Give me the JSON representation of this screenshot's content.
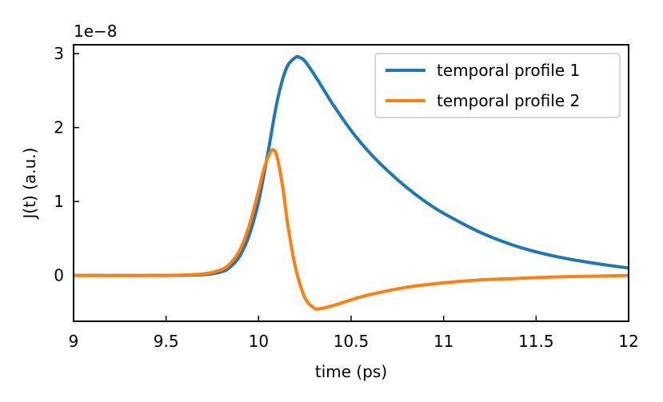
{
  "chart_data": {
    "type": "line",
    "title": "",
    "xlabel": "time (ps)",
    "ylabel": "J(t) (a.u.)",
    "y_offset_label": "1e−8",
    "xlim": [
      9,
      12
    ],
    "ylim": [
      -0.62,
      3.12
    ],
    "x_ticks": [
      9,
      9.5,
      10,
      10.5,
      11,
      11.5,
      12
    ],
    "x_tick_labels": [
      "9",
      "9.5",
      "10",
      "10.5",
      "11",
      "11.5",
      "12"
    ],
    "y_ticks": [
      0,
      1,
      2,
      3
    ],
    "y_tick_labels": [
      "0",
      "1",
      "2",
      "3"
    ],
    "grid": false,
    "legend_position": "top-right",
    "series": [
      {
        "name": "temporal profile 1",
        "color": "#1f77b4",
        "x": [
          9.0,
          9.5,
          9.7,
          9.8,
          9.85,
          9.9,
          9.95,
          10.0,
          10.05,
          10.1,
          10.15,
          10.2,
          10.22,
          10.25,
          10.3,
          10.35,
          10.4,
          10.5,
          10.6,
          10.7,
          10.8,
          10.9,
          11.0,
          11.2,
          11.4,
          11.6,
          11.8,
          12.0
        ],
        "y": [
          0.0,
          0.0,
          0.01,
          0.05,
          0.12,
          0.27,
          0.55,
          1.0,
          1.65,
          2.35,
          2.8,
          2.95,
          2.95,
          2.9,
          2.72,
          2.52,
          2.32,
          1.96,
          1.66,
          1.41,
          1.19,
          1.0,
          0.84,
          0.58,
          0.39,
          0.26,
          0.17,
          0.1
        ]
      },
      {
        "name": "temporal profile 2",
        "color": "#ff7f0e",
        "x": [
          9.0,
          9.5,
          9.7,
          9.8,
          9.85,
          9.9,
          9.95,
          10.0,
          10.03,
          10.06,
          10.08,
          10.1,
          10.13,
          10.16,
          10.2,
          10.25,
          10.3,
          10.33,
          10.4,
          10.5,
          10.6,
          10.8,
          11.0,
          11.2,
          11.4,
          11.6,
          11.8,
          12.0
        ],
        "y": [
          0.0,
          0.0,
          0.02,
          0.08,
          0.17,
          0.35,
          0.68,
          1.15,
          1.45,
          1.65,
          1.7,
          1.6,
          1.2,
          0.65,
          0.1,
          -0.3,
          -0.44,
          -0.45,
          -0.41,
          -0.33,
          -0.26,
          -0.16,
          -0.1,
          -0.06,
          -0.04,
          -0.02,
          -0.01,
          0.0
        ]
      }
    ]
  }
}
